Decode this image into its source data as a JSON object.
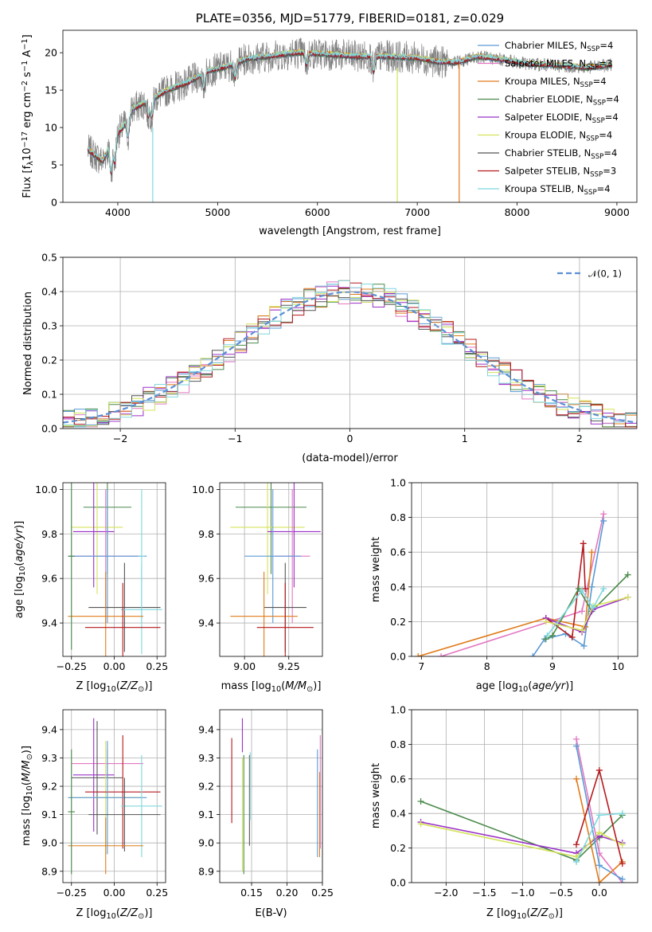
{
  "chart_data": [
    {
      "type": "line",
      "title": "PLATE=0356, MJD=51779, FIBERID=0181, z=0.029",
      "xlabel": "wavelength [Angstrom, rest frame]",
      "ylabel": "Flux [fλ10⁻¹⁷ erg cm⁻² s⁻¹ A⁻¹]",
      "xlim": [
        3450,
        9200
      ],
      "ylim": [
        0,
        23
      ],
      "xticks": [
        "4000",
        "5000",
        "6000",
        "7000",
        "8000",
        "9000"
      ],
      "yticks": [
        "0",
        "5",
        "10",
        "15",
        "20"
      ],
      "grid": false,
      "legend_position": "upper-right",
      "series": [
        {
          "name": "Chabrier MILES, NSSP=4",
          "color": "#5b9bd5"
        },
        {
          "name": "Salpeter MILES, NSSP=3",
          "color": "#e377c2"
        },
        {
          "name": "Kroupa MILES, NSSP=4",
          "color": "#e07b19"
        },
        {
          "name": "Chabrier ELODIE, NSSP=4",
          "color": "#4a8a4a"
        },
        {
          "name": "Salpeter ELODIE, NSSP=4",
          "color": "#9b30c8"
        },
        {
          "name": "Kroupa ELODIE, NSSP=4",
          "color": "#d4e35a"
        },
        {
          "name": "Chabrier STELIB, NSSP=4",
          "color": "#555555"
        },
        {
          "name": "Salpeter STELIB, NSSP=3",
          "color": "#b5191e"
        },
        {
          "name": "Kroupa STELIB, NSSP=4",
          "color": "#7fd8de"
        }
      ],
      "data_envelope": {
        "x": [
          3700,
          3850,
          3950,
          4050,
          4150,
          4300,
          4500,
          4700,
          4900,
          5100,
          5300,
          5500,
          5800,
          6100,
          6400,
          6700,
          7000,
          7200,
          7400,
          7600,
          7800,
          8100,
          8400,
          8700,
          8950
        ],
        "y": [
          7,
          5.5,
          8.5,
          10,
          12.5,
          13.5,
          15,
          16,
          17.5,
          18.2,
          19.2,
          19.5,
          20,
          19.8,
          19.5,
          19.5,
          19.3,
          18.8,
          18.7,
          19.5,
          19.2,
          18.5,
          18.3,
          18,
          18.4
        ]
      }
    },
    {
      "type": "line",
      "title": "",
      "xlabel": "(data-model)/error",
      "ylabel": "Normed distribution",
      "xlim": [
        -2.5,
        2.5
      ],
      "ylim": [
        0,
        0.5
      ],
      "xticks": [
        "−2",
        "−1",
        "0",
        "1",
        "2"
      ],
      "yticks": [
        "0.0",
        "0.1",
        "0.2",
        "0.3",
        "0.4",
        "0.5"
      ],
      "grid": true,
      "legend_position": "upper-right",
      "reference_curve": {
        "name": "𝒩(0, 1)",
        "mean": 0,
        "sigma": 1,
        "color": "#5b8fd6"
      },
      "histogram_bin_width": 0.1
    },
    {
      "type": "scatter",
      "xlabel": "Z [log10(Z/Z☉)]",
      "ylabel": "age  [log10(age/yr)]",
      "xlim": [
        -0.3,
        0.3
      ],
      "ylim": [
        9.25,
        10.03
      ],
      "xticks": [
        "−0.25",
        "0.00",
        "0.25"
      ],
      "yticks": [
        "9.4",
        "9.6",
        "9.8",
        "10.0"
      ],
      "grid": true,
      "points": [
        {
          "x": -0.04,
          "y": 9.92,
          "xerr": 0.14,
          "yerr": 0.3,
          "color": "#4a8a4a"
        },
        {
          "x": -0.1,
          "y": 9.83,
          "xerr": 0.15,
          "yerr": 0.3,
          "color": "#d4e35a"
        },
        {
          "x": -0.12,
          "y": 9.81,
          "xerr": 0.12,
          "yerr": 0.25,
          "color": "#9b30c8"
        },
        {
          "x": -0.05,
          "y": 9.7,
          "xerr": 0.21,
          "yerr": 0.3,
          "color": "#e377c2"
        },
        {
          "x": -0.04,
          "y": 9.7,
          "xerr": 0.23,
          "yerr": 0.3,
          "color": "#5b9bd5"
        },
        {
          "x": 0.16,
          "y": 9.7,
          "xerr": 0.02,
          "yerr": 0.3,
          "color": "#7fd8de"
        },
        {
          "x": 0.06,
          "y": 9.47,
          "xerr": 0.21,
          "yerr": 0.2,
          "color": "#555555"
        },
        {
          "x": 0.16,
          "y": 9.46,
          "xerr": 0.12,
          "yerr": 0.2,
          "color": "#7fd8de"
        },
        {
          "x": -0.05,
          "y": 9.43,
          "xerr": 0.22,
          "yerr": 0.2,
          "color": "#e07b19"
        },
        {
          "x": 0.05,
          "y": 9.38,
          "xerr": 0.22,
          "yerr": 0.2,
          "color": "#b5191e"
        },
        {
          "x": -0.25,
          "y": 9.7,
          "xerr": 0.02,
          "yerr": 0.42,
          "color": "#4a8a4a"
        }
      ]
    },
    {
      "type": "scatter",
      "xlabel": "mass [log10(M/M☉)]",
      "ylabel": "",
      "xlim": [
        8.86,
        9.44
      ],
      "ylim": [
        9.25,
        10.03
      ],
      "xticks": [
        "9.00",
        "9.25"
      ],
      "yticks": [
        "9.4",
        "9.6",
        "9.8",
        "10.0"
      ],
      "grid": true,
      "points": [
        {
          "x": 9.15,
          "y": 9.92,
          "xerr": 0.2,
          "yerr": 0.3,
          "color": "#4a8a4a"
        },
        {
          "x": 9.13,
          "y": 9.83,
          "xerr": 0.21,
          "yerr": 0.3,
          "color": "#d4e35a"
        },
        {
          "x": 9.28,
          "y": 9.81,
          "xerr": 0.15,
          "yerr": 0.25,
          "color": "#9b30c8"
        },
        {
          "x": 9.27,
          "y": 9.7,
          "xerr": 0.1,
          "yerr": 0.3,
          "color": "#e377c2"
        },
        {
          "x": 9.16,
          "y": 9.7,
          "xerr": 0.16,
          "yerr": 0.3,
          "color": "#5b9bd5"
        },
        {
          "x": 9.23,
          "y": 9.47,
          "xerr": 0.12,
          "yerr": 0.2,
          "color": "#555555"
        },
        {
          "x": 9.11,
          "y": 9.43,
          "xerr": 0.19,
          "yerr": 0.2,
          "color": "#e07b19"
        },
        {
          "x": 9.23,
          "y": 9.38,
          "xerr": 0.16,
          "yerr": 0.2,
          "color": "#b5191e"
        }
      ]
    },
    {
      "type": "line",
      "xlabel": "age  [log10(age/yr)]",
      "ylabel": "mass weight",
      "xlim": [
        6.85,
        10.3
      ],
      "ylim": [
        0,
        1
      ],
      "xticks": [
        "7",
        "8",
        "9",
        "10"
      ],
      "yticks": [
        "0.0",
        "0.2",
        "0.4",
        "0.6",
        "0.8",
        "1.0"
      ],
      "grid": true,
      "series": [
        {
          "color": "#e377c2",
          "x": [
            7.3,
            9.45,
            9.78
          ],
          "y": [
            0.0,
            0.26,
            0.82
          ]
        },
        {
          "color": "#5b9bd5",
          "x": [
            8.7,
            8.88,
            9.2,
            9.48,
            9.6,
            9.78
          ],
          "y": [
            0.0,
            0.1,
            0.13,
            0.06,
            0.4,
            0.78
          ]
        },
        {
          "color": "#e07b19",
          "x": [
            6.95,
            8.9,
            9.5,
            9.6
          ],
          "y": [
            0.0,
            0.22,
            0.17,
            0.6
          ]
        },
        {
          "color": "#b5191e",
          "x": [
            8.9,
            9.3,
            9.47,
            9.5
          ],
          "y": [
            0.22,
            0.11,
            0.65,
            0.39
          ]
        },
        {
          "color": "#4a8a4a",
          "x": [
            8.9,
            9.0,
            9.4,
            9.6,
            10.15
          ],
          "y": [
            0.1,
            0.12,
            0.39,
            0.26,
            0.47
          ]
        },
        {
          "color": "#9b30c8",
          "x": [
            8.9,
            9.45,
            9.62,
            10.15
          ],
          "y": [
            0.22,
            0.14,
            0.27,
            0.34
          ]
        },
        {
          "color": "#d4e35a",
          "x": [
            8.9,
            9.45,
            9.62,
            10.15
          ],
          "y": [
            0.2,
            0.15,
            0.29,
            0.34
          ]
        },
        {
          "color": "#7fd8de",
          "x": [
            8.92,
            9.45,
            9.62,
            9.78
          ],
          "y": [
            0.12,
            0.38,
            0.28,
            0.39
          ]
        }
      ]
    },
    {
      "type": "scatter",
      "xlabel": "Z [log10(Z/Z☉)]",
      "ylabel": "mass [log10(M/M☉)]",
      "xlim": [
        -0.3,
        0.3
      ],
      "ylim": [
        8.86,
        9.47
      ],
      "xticks": [
        "−0.25",
        "0.00",
        "0.25"
      ],
      "yticks": [
        "8.9",
        "9.0",
        "9.1",
        "9.2",
        "9.3",
        "9.4"
      ],
      "grid": true,
      "points": [
        {
          "x": -0.04,
          "y": 9.28,
          "xerr": 0.21,
          "yerr": 0.05,
          "color": "#e377c2"
        },
        {
          "x": -0.12,
          "y": 9.24,
          "xerr": 0.12,
          "yerr": 0.2,
          "color": "#9b30c8"
        },
        {
          "x": -0.1,
          "y": 9.23,
          "xerr": 0.15,
          "yerr": 0.2,
          "color": "#555555"
        },
        {
          "x": -0.05,
          "y": 9.16,
          "xerr": 0.21,
          "yerr": 0.2,
          "color": "#d4e35a"
        },
        {
          "x": 0.05,
          "y": 9.18,
          "xerr": 0.22,
          "yerr": 0.2,
          "color": "#b5191e"
        },
        {
          "x": -0.04,
          "y": 9.16,
          "xerr": 0.23,
          "yerr": 0.2,
          "color": "#5b9bd5"
        },
        {
          "x": 0.16,
          "y": 9.13,
          "xerr": 0.12,
          "yerr": 0.18,
          "color": "#7fd8de"
        },
        {
          "x": 0.06,
          "y": 9.1,
          "xerr": 0.21,
          "yerr": 0.13,
          "color": "#555555"
        },
        {
          "x": -0.05,
          "y": 8.99,
          "xerr": 0.22,
          "yerr": 0.1,
          "color": "#e07b19"
        },
        {
          "x": -0.25,
          "y": 9.11,
          "xerr": 0.02,
          "yerr": 0.22,
          "color": "#4a8a4a"
        }
      ]
    },
    {
      "type": "scatter",
      "xlabel": "E(B-V)",
      "ylabel": "",
      "xlim": [
        0.105,
        0.25
      ],
      "ylim": [
        8.86,
        9.47
      ],
      "xticks": [
        "0.15",
        "0.20",
        "0.25"
      ],
      "yticks": [
        "8.9",
        "9.0",
        "9.1",
        "9.2",
        "9.3",
        "9.4"
      ],
      "grid": true,
      "points": [
        {
          "x": 0.122,
          "y": 9.22,
          "yerr": 0.15,
          "color": "#b5191e"
        },
        {
          "x": 0.137,
          "y": 9.38,
          "yerr": 0.06,
          "color": "#9b30c8"
        },
        {
          "x": 0.137,
          "y": 9.1,
          "yerr": 0.2,
          "color": "#d4e35a"
        },
        {
          "x": 0.139,
          "y": 9.1,
          "yerr": 0.21,
          "color": "#4a8a4a"
        },
        {
          "x": 0.147,
          "y": 9.15,
          "yerr": 0.16,
          "color": "#555555"
        },
        {
          "x": 0.148,
          "y": 9.2,
          "yerr": 0.12,
          "color": "#7fd8de"
        },
        {
          "x": 0.243,
          "y": 9.14,
          "yerr": 0.19,
          "color": "#5b9bd5"
        },
        {
          "x": 0.246,
          "y": 9.1,
          "yerr": 0.15,
          "color": "#e07b19"
        },
        {
          "x": 0.247,
          "y": 9.18,
          "yerr": 0.2,
          "color": "#e377c2"
        }
      ]
    },
    {
      "type": "line",
      "xlabel": "Z [log10(Z/Z☉)]",
      "ylabel": "mass weight",
      "xlim": [
        -2.45,
        0.5
      ],
      "ylim": [
        0,
        1
      ],
      "xticks": [
        "−2.0",
        "−1.5",
        "−1.0",
        "−0.5",
        "0.0"
      ],
      "yticks": [
        "0.0",
        "0.2",
        "0.4",
        "0.6",
        "0.8",
        "1.0"
      ],
      "grid": true,
      "series": [
        {
          "color": "#4a8a4a",
          "x": [
            -2.33,
            -0.3,
            0.0,
            0.3
          ],
          "y": [
            0.47,
            0.13,
            0.26,
            0.39
          ]
        },
        {
          "color": "#9b30c8",
          "x": [
            -2.33,
            -0.3,
            0.0,
            0.3
          ],
          "y": [
            0.35,
            0.17,
            0.27,
            0.23
          ]
        },
        {
          "color": "#d4e35a",
          "x": [
            -2.33,
            -0.3,
            0.0,
            0.3
          ],
          "y": [
            0.34,
            0.15,
            0.29,
            0.22
          ]
        },
        {
          "color": "#e377c2",
          "x": [
            -0.3,
            0.0,
            0.3
          ],
          "y": [
            0.83,
            0.17,
            0.0
          ]
        },
        {
          "color": "#5b9bd5",
          "x": [
            -0.3,
            0.0,
            0.3
          ],
          "y": [
            0.79,
            0.1,
            0.02
          ]
        },
        {
          "color": "#e07b19",
          "x": [
            -0.3,
            0.0,
            0.3
          ],
          "y": [
            0.6,
            0.0,
            0.12
          ]
        },
        {
          "color": "#b5191e",
          "x": [
            -0.3,
            0.0,
            0.3
          ],
          "y": [
            0.22,
            0.65,
            0.11
          ]
        },
        {
          "color": "#7fd8de",
          "x": [
            -0.3,
            0.0,
            0.3
          ],
          "y": [
            0.12,
            0.39,
            0.4
          ]
        }
      ]
    }
  ]
}
